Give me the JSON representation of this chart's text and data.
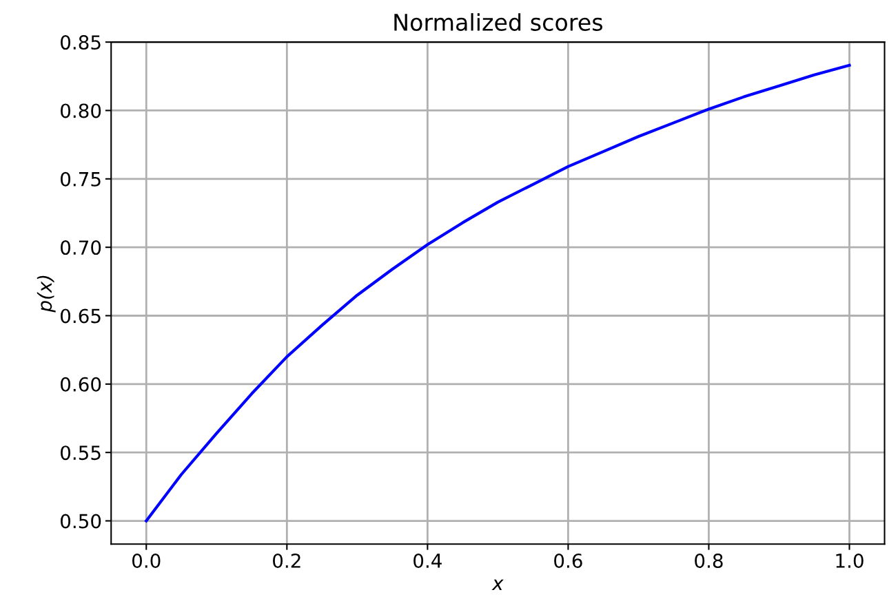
{
  "chart_data": {
    "type": "line",
    "title": "Normalized scores",
    "xlabel": "x",
    "ylabel": "p(x)",
    "x": [
      0.0,
      0.05,
      0.1,
      0.15,
      0.2,
      0.25,
      0.3,
      0.35,
      0.4,
      0.45,
      0.5,
      0.55,
      0.6,
      0.65,
      0.7,
      0.75,
      0.8,
      0.85,
      0.9,
      0.95,
      1.0
    ],
    "series": [
      {
        "color": "#0000ff",
        "values": [
          0.5,
          0.534,
          0.564,
          0.593,
          0.62,
          0.643,
          0.665,
          0.684,
          0.702,
          0.718,
          0.733,
          0.746,
          0.759,
          0.77,
          0.781,
          0.791,
          0.801,
          0.81,
          0.818,
          0.826,
          0.833
        ]
      }
    ],
    "xlim": [
      -0.05,
      1.05
    ],
    "ylim": [
      0.483,
      0.85
    ],
    "xticks": [
      {
        "value": 0.0,
        "label": "0.0"
      },
      {
        "value": 0.2,
        "label": "0.2"
      },
      {
        "value": 0.4,
        "label": "0.4"
      },
      {
        "value": 0.6,
        "label": "0.6"
      },
      {
        "value": 0.8,
        "label": "0.8"
      },
      {
        "value": 1.0,
        "label": "1.0"
      }
    ],
    "yticks": [
      {
        "value": 0.5,
        "label": "0.50"
      },
      {
        "value": 0.55,
        "label": "0.55"
      },
      {
        "value": 0.6,
        "label": "0.60"
      },
      {
        "value": 0.65,
        "label": "0.65"
      },
      {
        "value": 0.7,
        "label": "0.70"
      },
      {
        "value": 0.75,
        "label": "0.75"
      },
      {
        "value": 0.8,
        "label": "0.80"
      },
      {
        "value": 0.85,
        "label": "0.85"
      }
    ],
    "grid": true,
    "marker": "none",
    "line_style": "solid"
  }
}
